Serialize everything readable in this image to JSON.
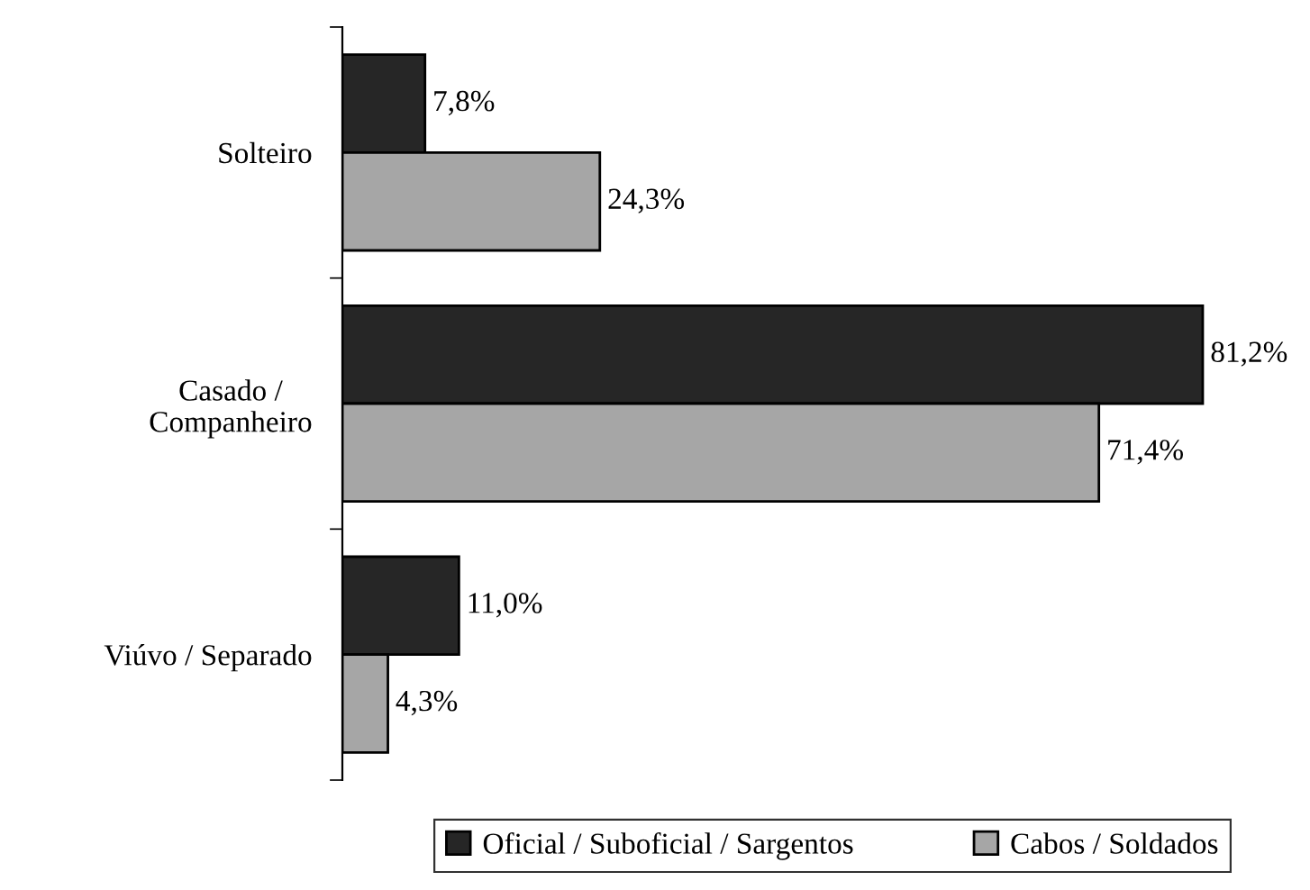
{
  "chart_data": {
    "type": "bar",
    "orientation": "horizontal",
    "categories": [
      "Solteiro",
      "Casado /\nCompanheiro",
      "Viúvo / Separado"
    ],
    "series": [
      {
        "name": "Oficial / Suboficial / Sargentos",
        "color": "#262626",
        "values": [
          7.8,
          81.2,
          11.0
        ],
        "value_labels": [
          "7,8%",
          "81,2%",
          "11,0%"
        ]
      },
      {
        "name": "Cabos / Soldados",
        "color": "#a6a6a6",
        "values": [
          24.3,
          71.4,
          4.3
        ],
        "value_labels": [
          "24,3%",
          "71,4%",
          "4,3%"
        ]
      }
    ],
    "legend": "bottom",
    "grid": false
  }
}
